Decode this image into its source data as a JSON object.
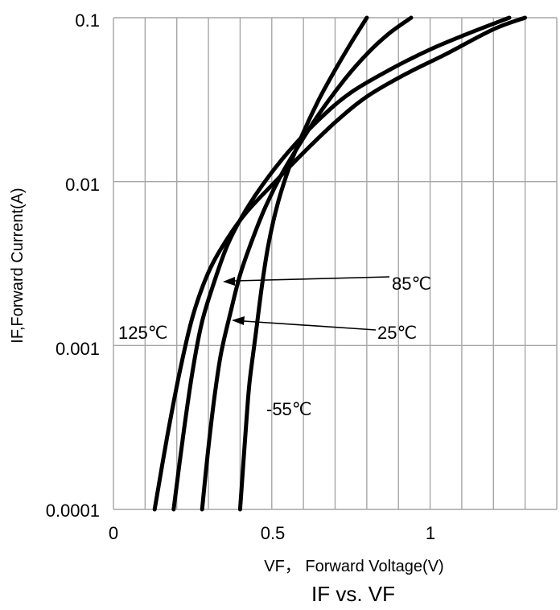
{
  "chart_data": {
    "type": "line",
    "title": "IF vs. VF",
    "xlabel": "VF， Forward Voltage(V)",
    "ylabel": "IF,Forward Current(A)",
    "xlim": [
      0,
      1.4
    ],
    "ylim": [
      0.0001,
      0.1
    ],
    "y_scale": "log",
    "grid": true,
    "x_tick_labels": [
      "0",
      "0.5",
      "1"
    ],
    "y_tick_labels": [
      "0.0001",
      "0.001",
      "0.01",
      "0.1"
    ],
    "series": [
      {
        "name": "125℃",
        "x": [
          0.13,
          0.17,
          0.21,
          0.25,
          0.3,
          0.36,
          0.42,
          0.5,
          0.6,
          0.7,
          0.8,
          0.92,
          1.05,
          1.2,
          1.3
        ],
        "y": [
          0.0001,
          0.00028,
          0.0007,
          0.0015,
          0.0028,
          0.0045,
          0.0065,
          0.0095,
          0.015,
          0.023,
          0.033,
          0.045,
          0.06,
          0.085,
          0.1
        ]
      },
      {
        "name": "85℃",
        "x": [
          0.19,
          0.22,
          0.25,
          0.28,
          0.32,
          0.36,
          0.41,
          0.47,
          0.55,
          0.65,
          0.75,
          0.88,
          1.0,
          1.12,
          1.25
        ],
        "y": [
          0.0001,
          0.00028,
          0.0007,
          0.0014,
          0.0025,
          0.0041,
          0.0063,
          0.0095,
          0.015,
          0.024,
          0.035,
          0.049,
          0.064,
          0.08,
          0.1
        ]
      },
      {
        "name": "25℃",
        "x": [
          0.28,
          0.3,
          0.32,
          0.34,
          0.37,
          0.4,
          0.44,
          0.48,
          0.53,
          0.58,
          0.65,
          0.73,
          0.8,
          0.87,
          0.94
        ],
        "y": [
          0.0001,
          0.00024,
          0.0005,
          0.0009,
          0.0016,
          0.0027,
          0.0045,
          0.007,
          0.011,
          0.016,
          0.026,
          0.042,
          0.06,
          0.08,
          0.1
        ]
      },
      {
        "name": "-55℃",
        "x": [
          0.4,
          0.41,
          0.42,
          0.43,
          0.45,
          0.47,
          0.49,
          0.52,
          0.56,
          0.6,
          0.65,
          0.7,
          0.75,
          0.8
        ],
        "y": [
          0.0001,
          0.00019,
          0.00035,
          0.0006,
          0.0012,
          0.0024,
          0.0042,
          0.0075,
          0.013,
          0.02,
          0.032,
          0.048,
          0.07,
          0.1
        ]
      }
    ]
  }
}
